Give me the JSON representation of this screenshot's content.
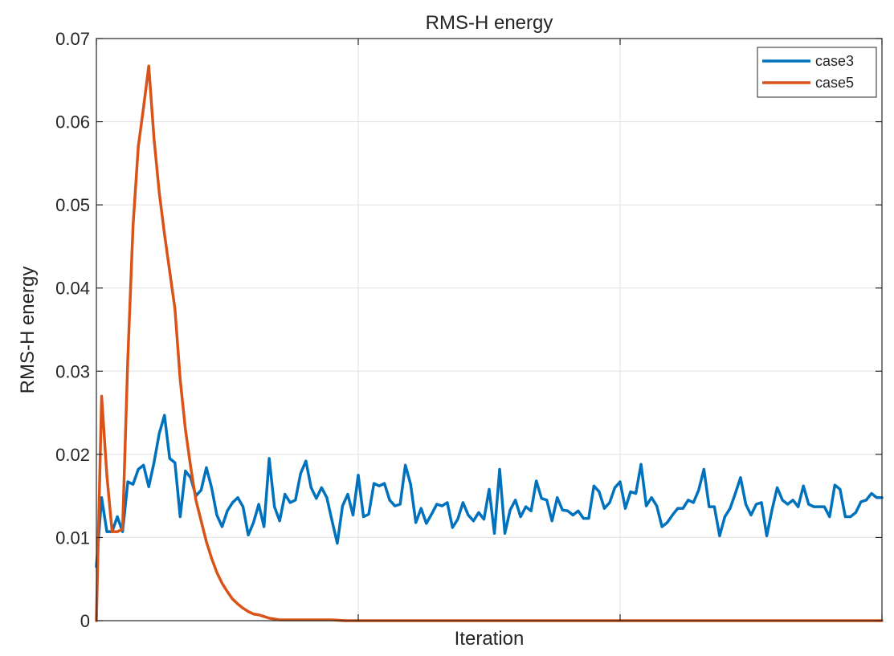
{
  "chart_data": {
    "type": "line",
    "title": "RMS-H energy",
    "xlabel": "Iteration",
    "ylabel": "RMS-H energy",
    "xlim": [
      0,
      300
    ],
    "ylim": [
      0,
      0.07
    ],
    "yticks": [
      0,
      0.01,
      0.02,
      0.03,
      0.04,
      0.05,
      0.06,
      0.07
    ],
    "ytick_labels": [
      "0",
      "0.01",
      "0.02",
      "0.03",
      "0.04",
      "0.05",
      "0.06",
      "0.07"
    ],
    "xticks": [
      0,
      100,
      200,
      300
    ],
    "xtick_labels": [
      "",
      "",
      "",
      ""
    ],
    "grid": true,
    "legend_position": "top-right",
    "colors": {
      "axis": "#262626",
      "grid": "#e0e0e0",
      "background": "#ffffff"
    },
    "series": [
      {
        "name": "case3",
        "color": "#0072BD",
        "x": [
          0,
          2,
          4,
          6,
          8,
          10,
          12,
          14,
          16,
          18,
          20,
          22,
          24,
          26,
          28,
          30,
          32,
          34,
          36,
          38,
          40,
          42,
          44,
          46,
          48,
          50,
          52,
          54,
          56,
          58,
          60,
          62,
          64,
          66,
          68,
          70,
          72,
          74,
          76,
          78,
          80,
          82,
          84,
          86,
          88,
          90,
          92,
          94,
          96,
          98,
          100,
          102,
          104,
          106,
          108,
          110,
          112,
          114,
          116,
          118,
          120,
          122,
          124,
          126,
          128,
          130,
          132,
          134,
          136,
          138,
          140,
          142,
          144,
          146,
          148,
          150,
          152,
          154,
          156,
          158,
          160,
          162,
          164,
          166,
          168,
          170,
          172,
          174,
          176,
          178,
          180,
          182,
          184,
          186,
          188,
          190,
          192,
          194,
          196,
          198,
          200,
          202,
          204,
          206,
          208,
          210,
          212,
          214,
          216,
          218,
          220,
          222,
          224,
          226,
          228,
          230,
          232,
          234,
          236,
          238,
          240,
          242,
          244,
          246,
          248,
          250,
          252,
          254,
          256,
          258,
          260,
          262,
          264,
          266,
          268,
          270,
          272,
          274,
          276,
          278,
          280,
          282,
          284,
          286,
          288,
          290,
          292,
          294,
          296,
          298,
          300
        ],
        "values": [
          0.0065,
          0.0148,
          0.0107,
          0.0107,
          0.0125,
          0.0107,
          0.0167,
          0.0164,
          0.0182,
          0.0187,
          0.0161,
          0.019,
          0.0225,
          0.0247,
          0.0195,
          0.019,
          0.0125,
          0.018,
          0.0172,
          0.015,
          0.0157,
          0.0184,
          0.016,
          0.0127,
          0.0113,
          0.0132,
          0.0142,
          0.0148,
          0.0137,
          0.0103,
          0.0118,
          0.014,
          0.0113,
          0.0195,
          0.0137,
          0.012,
          0.0152,
          0.0142,
          0.0145,
          0.0177,
          0.0192,
          0.016,
          0.0147,
          0.016,
          0.0148,
          0.012,
          0.0093,
          0.0138,
          0.0152,
          0.0127,
          0.0175,
          0.0125,
          0.0128,
          0.0165,
          0.0162,
          0.0165,
          0.0145,
          0.0138,
          0.014,
          0.0187,
          0.0164,
          0.0118,
          0.0135,
          0.0117,
          0.0128,
          0.014,
          0.0138,
          0.0142,
          0.0112,
          0.0122,
          0.0142,
          0.0127,
          0.012,
          0.013,
          0.0122,
          0.0158,
          0.0105,
          0.0182,
          0.0105,
          0.0133,
          0.0145,
          0.0125,
          0.0137,
          0.0132,
          0.0168,
          0.0147,
          0.0145,
          0.012,
          0.0148,
          0.0133,
          0.0132,
          0.0127,
          0.0132,
          0.0123,
          0.0123,
          0.0162,
          0.0155,
          0.0135,
          0.0142,
          0.016,
          0.0167,
          0.0135,
          0.0155,
          0.0153,
          0.0188,
          0.0138,
          0.0148,
          0.0138,
          0.0113,
          0.0118,
          0.0127,
          0.0135,
          0.0135,
          0.0145,
          0.0142,
          0.0157,
          0.0182,
          0.0137,
          0.0137,
          0.0102,
          0.0125,
          0.0135,
          0.0153,
          0.0172,
          0.014,
          0.0127,
          0.014,
          0.0142,
          0.0102,
          0.0133,
          0.016,
          0.0145,
          0.014,
          0.0145,
          0.0137,
          0.0162,
          0.014,
          0.0137,
          0.0137,
          0.0137,
          0.0125,
          0.0163,
          0.0158,
          0.0125,
          0.0125,
          0.013,
          0.0143,
          0.0145,
          0.0153,
          0.0148,
          0.0148
        ]
      },
      {
        "name": "case5",
        "color": "#D95319",
        "x": [
          0,
          2,
          4,
          6,
          8,
          10,
          12,
          14,
          16,
          18,
          20,
          22,
          24,
          26,
          28,
          30,
          32,
          34,
          36,
          38,
          40,
          42,
          44,
          46,
          48,
          50,
          52,
          54,
          56,
          58,
          60,
          62,
          64,
          66,
          68,
          70,
          75,
          80,
          85,
          90,
          95,
          100,
          120,
          150,
          200,
          250,
          300
        ],
        "values": [
          0.0,
          0.027,
          0.0175,
          0.0107,
          0.0107,
          0.011,
          0.0315,
          0.0475,
          0.057,
          0.0617,
          0.0667,
          0.058,
          0.0515,
          0.0465,
          0.042,
          0.0375,
          0.029,
          0.023,
          0.0185,
          0.0145,
          0.012,
          0.0095,
          0.0075,
          0.0058,
          0.0045,
          0.0035,
          0.0026,
          0.002,
          0.0015,
          0.0011,
          0.0008,
          0.0007,
          0.0005,
          0.0003,
          0.0002,
          0.0001,
          0.0001,
          0.0001,
          0.0001,
          0.0001,
          0.0,
          0.0,
          0.0,
          0.0,
          0.0,
          0.0,
          0.0
        ]
      }
    ]
  }
}
